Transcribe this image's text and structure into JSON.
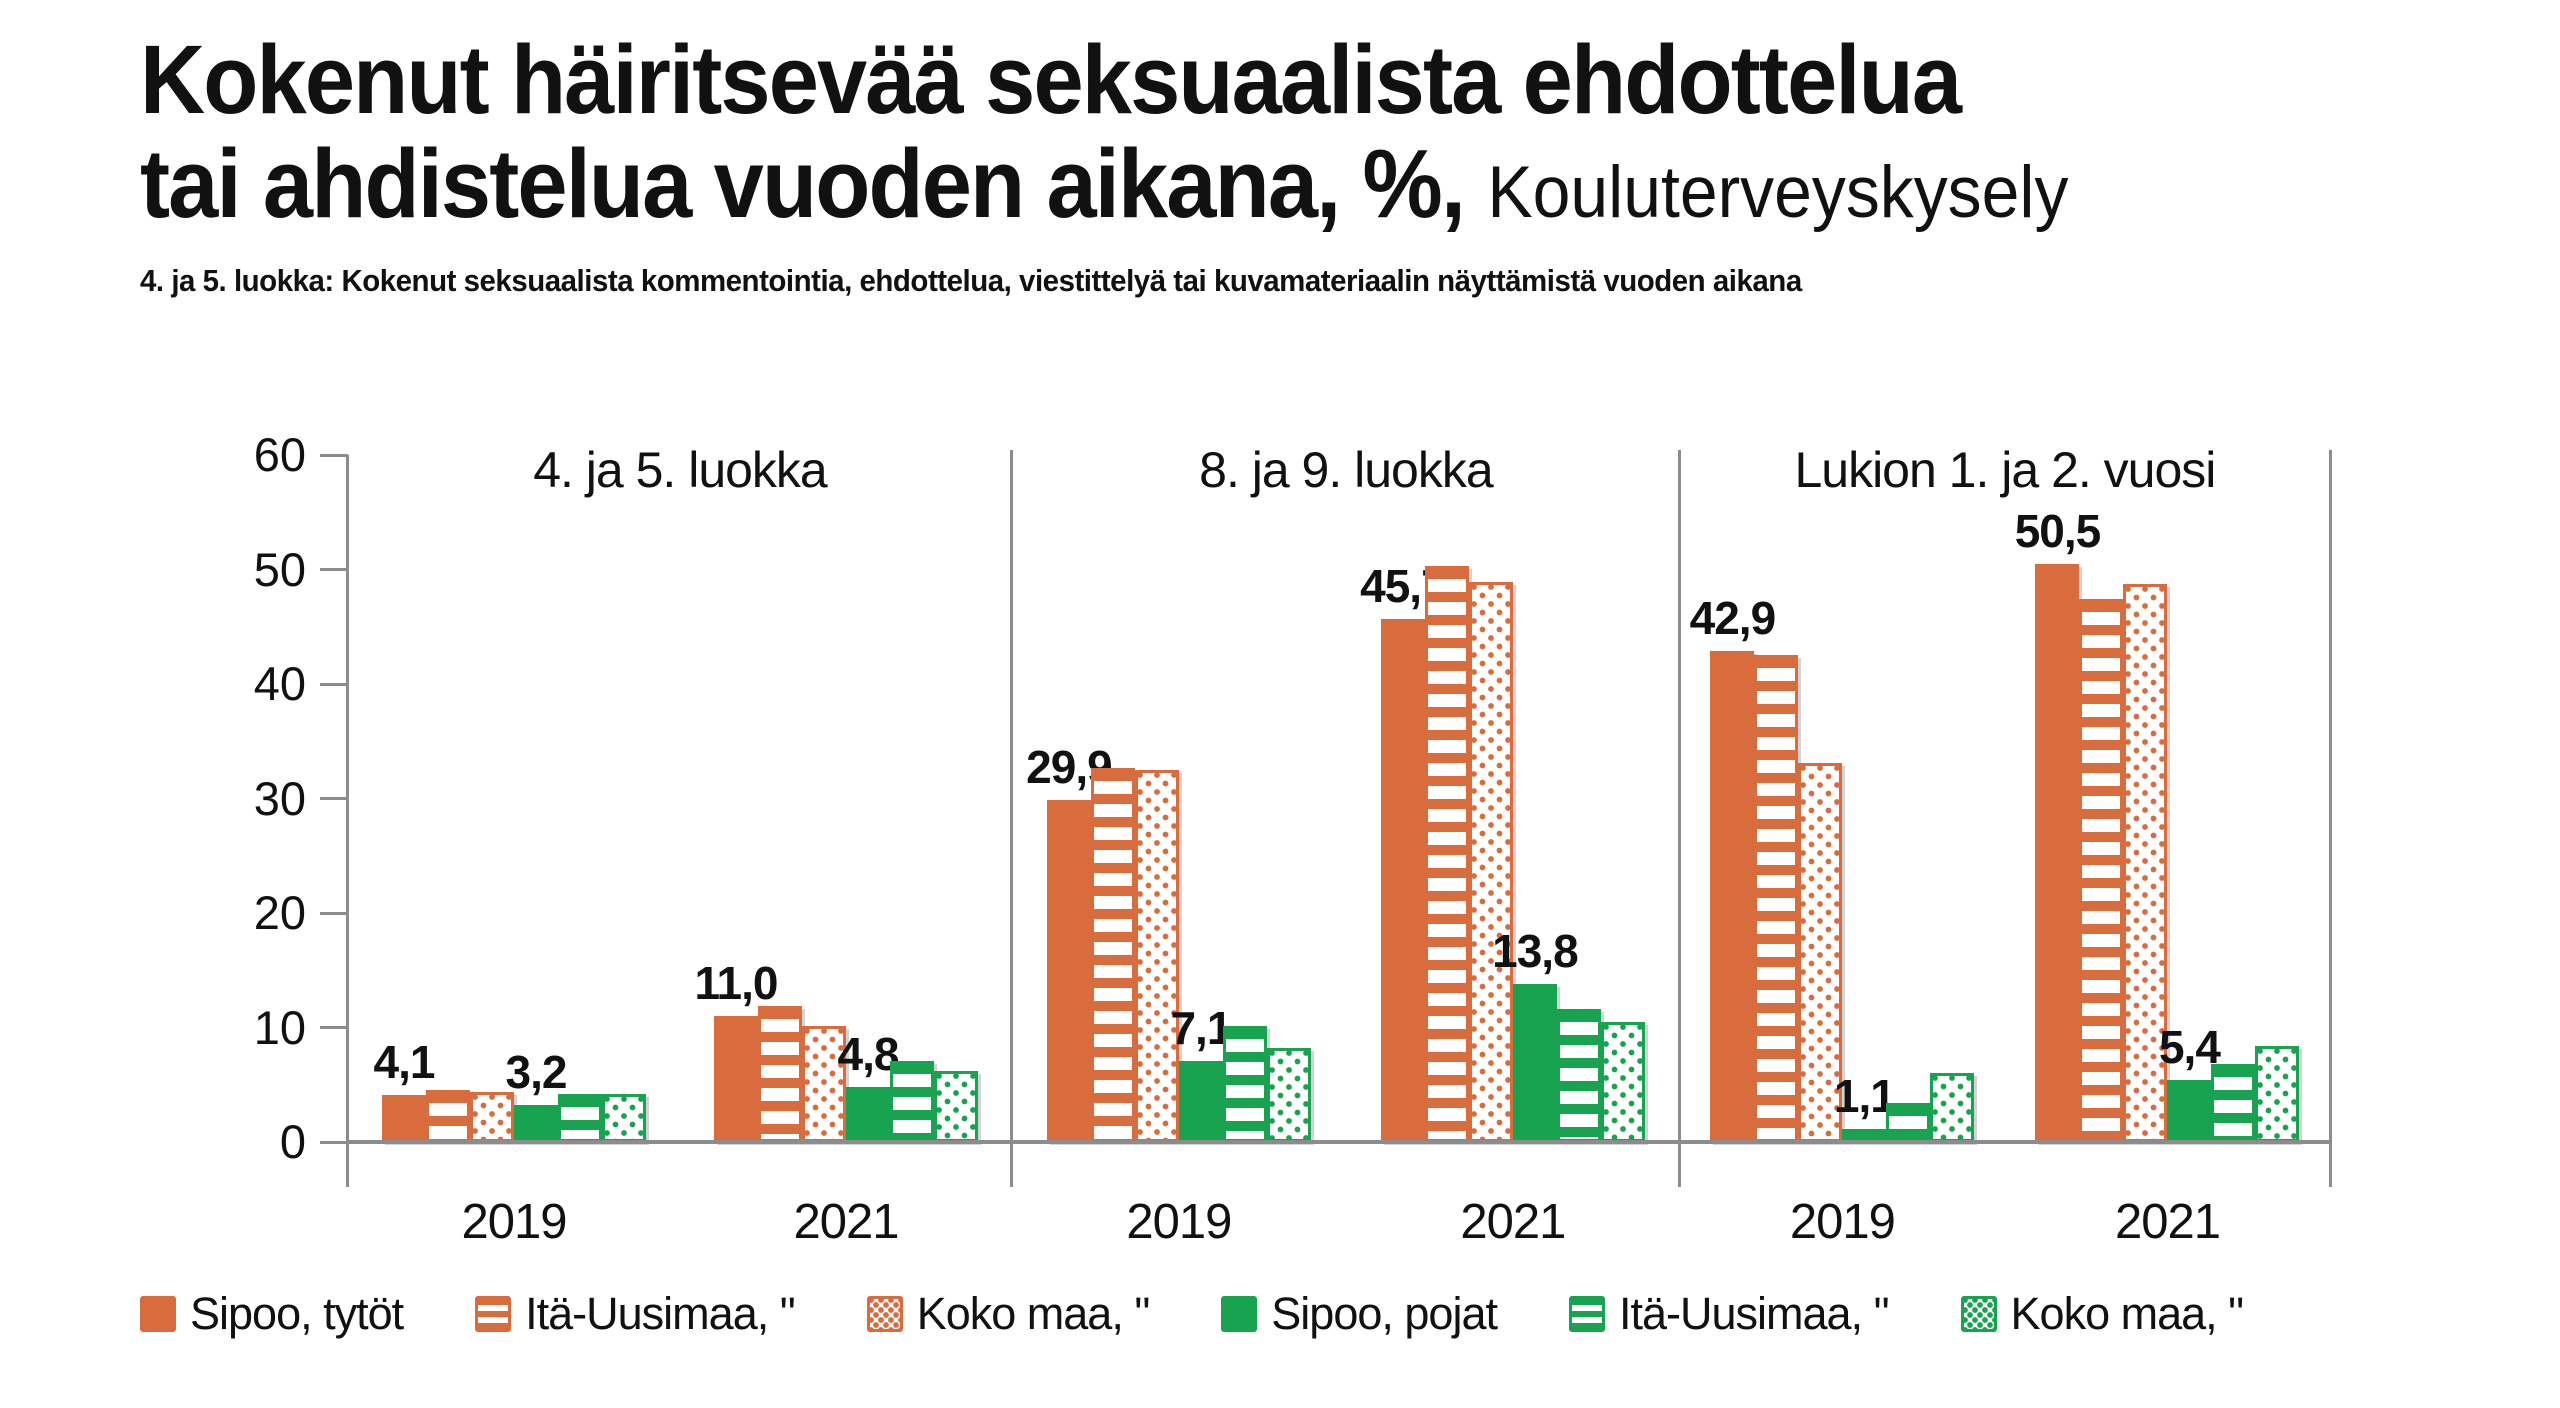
{
  "header": {
    "title_line1": "Kokenut häiritsevää seksuaalista ehdottelua",
    "title_line2": "tai ahdistelua vuoden aikana, %,",
    "title_suffix": "Kouluterveyskysely",
    "subtitle": "4. ja 5. luokka: Kokenut seksuaalista kommentointia, ehdottelua, viestittelyä tai kuvamateriaalin näyttämistä vuoden aikana"
  },
  "colors": {
    "orange": "#d96c3c",
    "green": "#18a351",
    "axis_gray": "#8c8c8c"
  },
  "chart_data": {
    "type": "bar",
    "title": "Kokenut häiritsevää seksuaalista ehdottelua tai ahdistelua vuoden aikana, %, Kouluterveyskysely",
    "ylabel": "%",
    "ylim": [
      0,
      60
    ],
    "yticks": [
      0,
      10,
      20,
      30,
      40,
      50,
      60
    ],
    "grid": false,
    "legend_position": "bottom",
    "series": [
      {
        "name": "Sipoo, tytöt",
        "pattern": "solid",
        "color": "orange"
      },
      {
        "name": "Itä-Uusimaa, \"",
        "pattern": "hstripes",
        "color": "orange"
      },
      {
        "name": "Koko maa, \"",
        "pattern": "dots",
        "color": "orange"
      },
      {
        "name": "Sipoo, pojat",
        "pattern": "solid",
        "color": "green"
      },
      {
        "name": "Itä-Uusimaa, \"",
        "pattern": "hstripes",
        "color": "green"
      },
      {
        "name": "Koko maa, \"",
        "pattern": "dots",
        "color": "green"
      }
    ],
    "panels": [
      {
        "title": "4. ja 5. luokka",
        "groups": [
          {
            "year": "2019",
            "values": [
              4.1,
              4.5,
              4.4,
              3.2,
              4.2,
              4.2
            ],
            "labels": [
              "4,1",
              null,
              null,
              "3,2",
              null,
              null
            ]
          },
          {
            "year": "2021",
            "values": [
              11.0,
              11.9,
              10.1,
              4.8,
              7.1,
              6.2
            ],
            "labels": [
              "11,0",
              null,
              null,
              "4,8",
              null,
              null
            ]
          }
        ]
      },
      {
        "title": "8. ja 9. luokka",
        "groups": [
          {
            "year": "2019",
            "values": [
              29.9,
              32.7,
              32.5,
              7.1,
              10.1,
              8.2
            ],
            "labels": [
              "29,9",
              null,
              null,
              "7,1",
              null,
              null
            ]
          },
          {
            "year": "2021",
            "values": [
              45.7,
              50.3,
              48.9,
              13.8,
              11.6,
              10.5
            ],
            "labels": [
              "45,7",
              null,
              null,
              "13,8",
              null,
              null
            ]
          }
        ]
      },
      {
        "title": "Lukion 1. ja 2. vuosi",
        "groups": [
          {
            "year": "2019",
            "values": [
              42.9,
              42.5,
              33.1,
              1.1,
              3.4,
              6.0
            ],
            "labels": [
              "42,9",
              null,
              null,
              "1,1",
              null,
              null
            ]
          },
          {
            "year": "2021",
            "values": [
              50.5,
              47.4,
              48.7,
              5.4,
              6.8,
              8.4
            ],
            "labels": [
              "50,5",
              null,
              null,
              "5,4",
              null,
              null
            ]
          }
        ]
      }
    ]
  }
}
